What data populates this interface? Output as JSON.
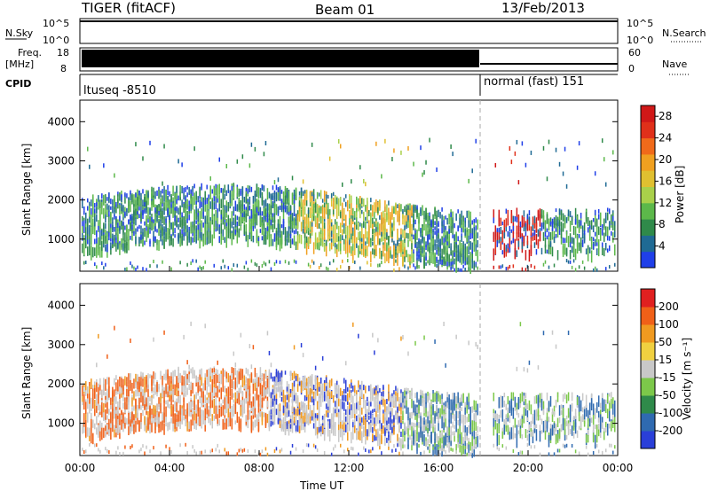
{
  "header": {
    "radar": "TIGER (fitACF)",
    "beam": "Beam 01",
    "date": "13/Feb/2013"
  },
  "strips": {
    "nsky": {
      "label": "N.Sky",
      "ticks": [
        "10^5",
        "10^0"
      ]
    },
    "nsearch": {
      "label": "N.Search"
    },
    "freq": {
      "label_line1": "Freq.",
      "label_line2": "[MHz]",
      "ticks": [
        "18",
        "8"
      ]
    },
    "nave": {
      "label": "Nave",
      "ticks": [
        "60",
        "0"
      ]
    },
    "cpid": {
      "label": "CPID",
      "mode1": "ltuseq -8510",
      "mode2": "normal (fast) 151"
    }
  },
  "chart_data": [
    {
      "type": "heatmap",
      "title": "",
      "xlabel": "",
      "ylabel": "Slant Range [km]",
      "x_ticks": [
        "00:00",
        "04:00",
        "08:00",
        "12:00",
        "16:00",
        "20:00",
        "00:00"
      ],
      "y_ticks": [
        "1000",
        "2000",
        "3000",
        "4000"
      ],
      "ylim": [
        180,
        4550
      ],
      "colorbar": {
        "label": "Power [dB]",
        "ticks": [
          "4",
          "8",
          "12",
          "16",
          "20",
          "24",
          "28"
        ],
        "range": [
          0,
          30
        ],
        "colors": [
          "#1f3fe8",
          "#1f6a94",
          "#2f8a4a",
          "#5cb84a",
          "#a9d04a",
          "#e0c030",
          "#f0a020",
          "#f06a1a",
          "#e0301a",
          "#d01818"
        ]
      },
      "mode_change_time": "18:00"
    },
    {
      "type": "heatmap",
      "title": "",
      "xlabel": "Time UT",
      "ylabel": "Slant Range [km]",
      "x_ticks": [
        "00:00",
        "04:00",
        "08:00",
        "12:00",
        "16:00",
        "20:00",
        "00:00"
      ],
      "y_ticks": [
        "1000",
        "2000",
        "3000",
        "4000"
      ],
      "ylim": [
        180,
        4550
      ],
      "colorbar": {
        "label": "Velocity [m s⁻¹]",
        "ticks": [
          "200",
          "100",
          "50",
          "15",
          "-15",
          "-50",
          "-100",
          "-200"
        ],
        "colors": [
          "#2a3fd8",
          "#2f6ab0",
          "#2f8a4a",
          "#7cc84a",
          "#c8c8c8",
          "#f0d040",
          "#f09a20",
          "#f06018",
          "#e02020"
        ]
      },
      "mode_change_time": "18:00"
    }
  ]
}
